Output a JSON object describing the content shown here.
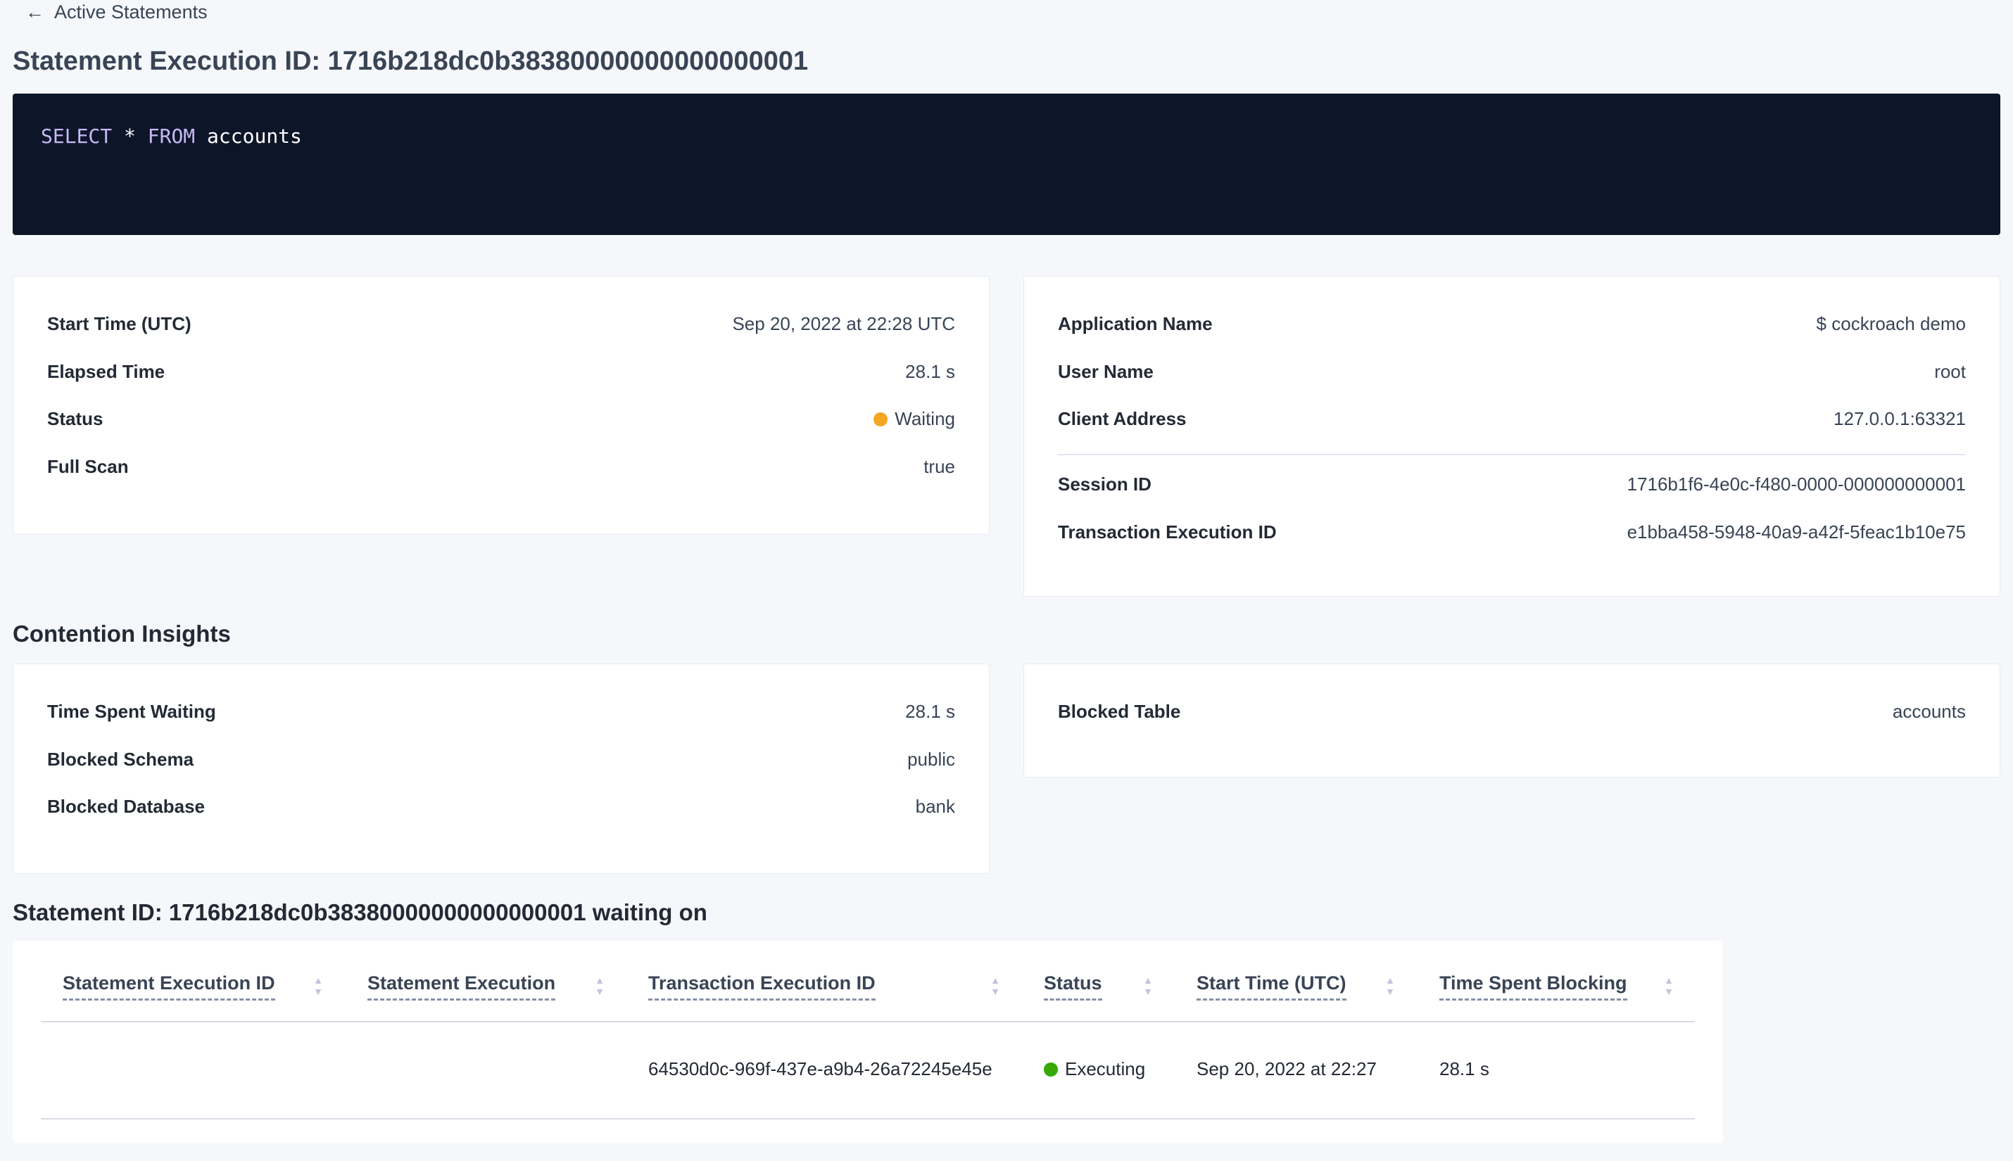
{
  "back_link": "Active Statements",
  "title": "Statement Execution ID: 1716b218dc0b38380000000000000001",
  "sql": {
    "kw1": "SELECT",
    "star": "*",
    "kw2": "FROM",
    "table": "accounts"
  },
  "overview_left": [
    {
      "label": "Start Time (UTC)",
      "value": "Sep 20, 2022 at 22:28 UTC"
    },
    {
      "label": "Elapsed Time",
      "value": "28.1 s"
    },
    {
      "label": "Status",
      "value": "Waiting",
      "status_color": "#f5a623"
    },
    {
      "label": "Full Scan",
      "value": "true"
    }
  ],
  "overview_right": [
    {
      "label": "Application Name",
      "value": "$ cockroach demo"
    },
    {
      "label": "User Name",
      "value": "root"
    },
    {
      "label": "Client Address",
      "value": "127.0.0.1:63321"
    },
    {
      "label": "Session ID",
      "value": "1716b1f6-4e0c-f480-0000-000000000001"
    },
    {
      "label": "Transaction Execution ID",
      "value": "e1bba458-5948-40a9-a42f-5feac1b10e75"
    }
  ],
  "contention": {
    "heading": "Contention Insights",
    "left": [
      {
        "label": "Time Spent Waiting",
        "value": "28.1 s"
      },
      {
        "label": "Blocked Schema",
        "value": "public"
      },
      {
        "label": "Blocked Database",
        "value": "bank"
      }
    ],
    "right": [
      {
        "label": "Blocked Table",
        "value": "accounts"
      }
    ]
  },
  "waiting_heading": "Statement ID: 1716b218dc0b38380000000000000001 waiting on",
  "table": {
    "columns": [
      "Statement Execution ID",
      "Statement Execution",
      "Transaction Execution ID",
      "Status",
      "Start Time (UTC)",
      "Time Spent Blocking"
    ],
    "rows": [
      {
        "stmt_exec_id": "",
        "stmt_exec": "",
        "txn_exec_id": "64530d0c-969f-437e-a9b4-26a72245e45e",
        "status": "Executing",
        "status_color": "#37a806",
        "start": "Sep 20, 2022 at 22:27",
        "blocking": "28.1 s"
      }
    ]
  }
}
